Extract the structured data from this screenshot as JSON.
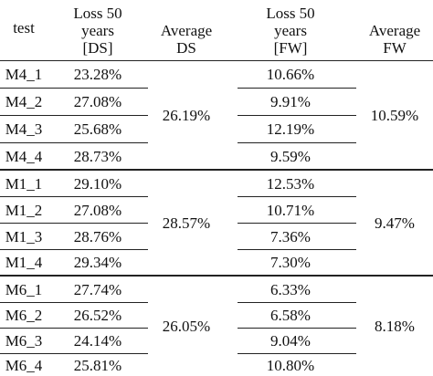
{
  "headers": {
    "test": "test",
    "loss_ds": [
      "Loss 50",
      "years",
      "[DS]"
    ],
    "avg_ds": [
      "Average",
      "DS"
    ],
    "loss_fw": [
      "Loss 50",
      "years",
      "[FW]"
    ],
    "avg_fw": [
      "Average",
      "FW"
    ]
  },
  "groups": [
    {
      "avg_ds": "26.19%",
      "avg_fw": "10.59%",
      "rows": [
        {
          "test": "M4_1",
          "loss_ds": "23.28%",
          "loss_fw": "10.66%"
        },
        {
          "test": "M4_2",
          "loss_ds": "27.08%",
          "loss_fw": "9.91%"
        },
        {
          "test": "M4_3",
          "loss_ds": "25.68%",
          "loss_fw": "12.19%"
        },
        {
          "test": "M4_4",
          "loss_ds": "28.73%",
          "loss_fw": "9.59%"
        }
      ]
    },
    {
      "avg_ds": "28.57%",
      "avg_fw": "9.47%",
      "rows": [
        {
          "test": "M1_1",
          "loss_ds": "29.10%",
          "loss_fw": "12.53%"
        },
        {
          "test": "M1_2",
          "loss_ds": "27.08%",
          "loss_fw": "10.71%"
        },
        {
          "test": "M1_3",
          "loss_ds": "28.76%",
          "loss_fw": "7.36%"
        },
        {
          "test": "M1_4",
          "loss_ds": "29.34%",
          "loss_fw": "7.30%"
        }
      ]
    },
    {
      "avg_ds": "26.05%",
      "avg_fw": "8.18%",
      "rows": [
        {
          "test": "M6_1",
          "loss_ds": "27.74%",
          "loss_fw": "6.33%"
        },
        {
          "test": "M6_2",
          "loss_ds": "26.52%",
          "loss_fw": "6.58%"
        },
        {
          "test": "M6_3",
          "loss_ds": "24.14%",
          "loss_fw": "9.04%"
        },
        {
          "test": "M6_4",
          "loss_ds": "25.81%",
          "loss_fw": "10.80%"
        }
      ]
    }
  ]
}
